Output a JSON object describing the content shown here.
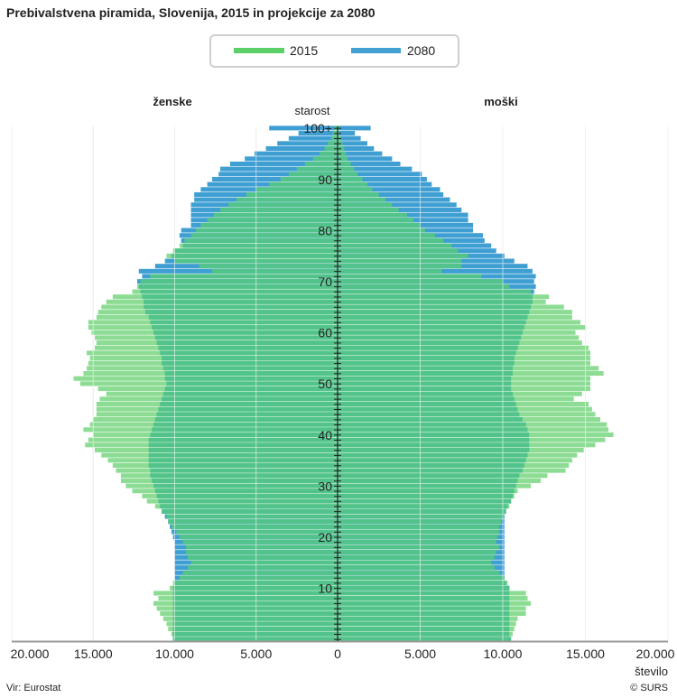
{
  "chart_data": {
    "type": "bar",
    "orientation": "horizontal-pyramid",
    "title": "Prebivalstvena piramida, Slovenija, 2015 in projekcije za 2080",
    "left_label": "ženske",
    "right_label": "moški",
    "ylabel": "starost",
    "xlabel": "število",
    "xlim": [
      0,
      20000
    ],
    "x_ticks": [
      "20.000",
      "15.000",
      "10.000",
      "5.000",
      "0",
      "5.000",
      "10.000",
      "15.000",
      "20.000"
    ],
    "y_ticks": [
      "10",
      "20",
      "30",
      "40",
      "50",
      "60",
      "70",
      "80",
      "90",
      "100+"
    ],
    "age_categories": "0..100+ (single years)",
    "legend": [
      {
        "name": "2015",
        "color": "#5ccf68"
      },
      {
        "name": "2080",
        "color": "#42a0d3"
      }
    ],
    "colors": {
      "only2015": "#8cdc94",
      "only2080": "#3f9fd3",
      "overlap": "#52c38a"
    },
    "units": "thousands of persons",
    "series": [
      {
        "name": "ženske 2015",
        "values": [
          10.1,
          10.2,
          10.4,
          10.5,
          10.7,
          10.9,
          11.1,
          11.3,
          11.0,
          11.3,
          10.3,
          10.1,
          9.7,
          9.5,
          9.2,
          9.0,
          9.2,
          9.3,
          9.3,
          9.5,
          9.7,
          9.9,
          10.2,
          10.4,
          10.5,
          10.8,
          11.2,
          11.7,
          12.0,
          12.6,
          13.0,
          13.3,
          13.3,
          13.6,
          13.8,
          14.1,
          14.5,
          14.9,
          15.5,
          15.3,
          15.0,
          15.6,
          15.2,
          15.0,
          14.8,
          14.8,
          14.8,
          14.6,
          14.2,
          14.7,
          15.8,
          16.2,
          15.6,
          15.4,
          15.3,
          15.2,
          15.4,
          14.9,
          14.8,
          14.9,
          15.1,
          15.3,
          15.3,
          14.8,
          14.7,
          14.5,
          14.2,
          13.8,
          12.6,
          12.3,
          12.1,
          11.5,
          7.7,
          8.5,
          10.0,
          10.5,
          10.1,
          9.7,
          9.4,
          9.0,
          8.7,
          8.4,
          8.0,
          7.6,
          7.2,
          6.7,
          6.2,
          5.6,
          5.0,
          4.2,
          3.5,
          3.0,
          2.5,
          2.0,
          1.5,
          1.1,
          0.8,
          0.6,
          0.4,
          0.3,
          0.2
        ]
      },
      {
        "name": "ženske 2080",
        "values": [
          10.1,
          10.1,
          10.1,
          10.1,
          10.1,
          10.1,
          10.1,
          10.1,
          10.1,
          10.1,
          10.1,
          10.0,
          10.0,
          10.0,
          10.0,
          10.0,
          10.0,
          10.0,
          10.0,
          10.0,
          10.1,
          10.2,
          10.3,
          10.4,
          10.6,
          10.8,
          10.9,
          11.0,
          11.1,
          11.2,
          11.3,
          11.4,
          11.5,
          11.5,
          11.6,
          11.6,
          11.6,
          11.6,
          11.6,
          11.6,
          11.5,
          11.4,
          11.3,
          11.2,
          11.1,
          11.0,
          10.9,
          10.8,
          10.7,
          10.6,
          10.5,
          10.6,
          10.6,
          10.7,
          10.8,
          10.8,
          10.9,
          11.0,
          11.1,
          11.2,
          11.3,
          11.4,
          11.5,
          11.6,
          11.8,
          11.9,
          11.9,
          12.0,
          12.1,
          12.2,
          12.3,
          12.0,
          12.2,
          11.2,
          10.6,
          10.2,
          10.0,
          9.5,
          9.6,
          9.7,
          9.6,
          9.0,
          9.0,
          9.0,
          9.0,
          9.0,
          8.8,
          8.8,
          8.4,
          8.0,
          7.7,
          7.3,
          7.2,
          6.6,
          5.7,
          5.1,
          4.4,
          3.7,
          3.0,
          2.4,
          4.2
        ]
      },
      {
        "name": "moški 2015",
        "values": [
          10.5,
          10.6,
          10.7,
          10.8,
          10.9,
          11.4,
          11.4,
          11.7,
          11.5,
          11.4,
          10.4,
          10.3,
          10.1,
          9.8,
          9.5,
          9.3,
          9.5,
          9.6,
          9.8,
          9.6,
          9.7,
          9.8,
          9.8,
          9.9,
          10.0,
          10.2,
          10.4,
          10.5,
          10.7,
          10.9,
          11.7,
          12.3,
          12.7,
          13.8,
          14.0,
          14.2,
          14.5,
          14.9,
          15.6,
          16.2,
          16.7,
          16.4,
          16.3,
          15.9,
          15.6,
          15.4,
          15.2,
          14.3,
          14.8,
          15.3,
          15.3,
          15.3,
          16.1,
          15.8,
          15.3,
          15.3,
          15.3,
          15.2,
          14.8,
          14.6,
          14.4,
          15.0,
          14.7,
          14.2,
          14.2,
          13.7,
          12.6,
          12.8,
          11.7,
          10.4,
          10.0,
          8.7,
          6.3,
          7.5,
          7.5,
          7.9,
          7.3,
          6.9,
          6.4,
          5.9,
          5.3,
          5.0,
          4.6,
          4.2,
          3.7,
          3.3,
          2.9,
          2.5,
          2.1,
          1.8,
          1.5,
          1.2,
          1.0,
          0.8,
          0.6,
          0.5,
          0.4,
          0.3,
          0.2,
          0.1,
          0.1
        ]
      },
      {
        "name": "moški 2080",
        "values": [
          10.5,
          10.4,
          10.4,
          10.4,
          10.4,
          10.4,
          10.4,
          10.4,
          10.4,
          10.4,
          10.4,
          10.2,
          10.1,
          10.1,
          10.1,
          10.1,
          10.1,
          10.1,
          10.1,
          10.1,
          10.1,
          10.1,
          10.1,
          10.1,
          10.1,
          10.2,
          10.3,
          10.5,
          10.6,
          10.7,
          10.8,
          10.9,
          11.0,
          11.2,
          11.3,
          11.4,
          11.5,
          11.6,
          11.6,
          11.6,
          11.6,
          11.5,
          11.4,
          11.2,
          11.0,
          10.9,
          10.8,
          10.7,
          10.6,
          10.5,
          10.5,
          10.5,
          10.6,
          10.6,
          10.7,
          10.7,
          10.8,
          10.9,
          11.0,
          11.1,
          11.2,
          11.3,
          11.4,
          11.5,
          11.6,
          11.7,
          11.8,
          11.8,
          11.9,
          12.0,
          11.9,
          12.0,
          11.8,
          11.5,
          10.7,
          10.1,
          9.6,
          9.3,
          8.9,
          8.8,
          8.2,
          8.2,
          7.9,
          7.9,
          7.5,
          7.2,
          6.8,
          6.4,
          6.2,
          5.7,
          5.4,
          5.1,
          4.5,
          3.8,
          3.3,
          2.7,
          2.2,
          1.8,
          1.4,
          1.05,
          2.0
        ]
      }
    ]
  },
  "source": "Vir: Eurostat",
  "copyright": "© SURS"
}
